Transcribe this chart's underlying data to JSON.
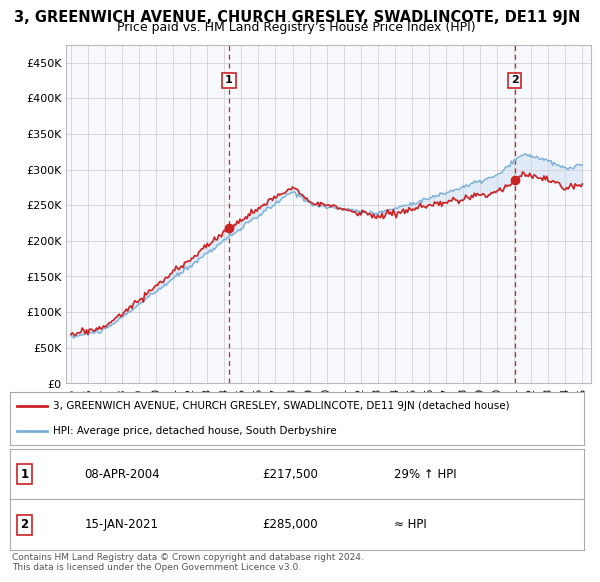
{
  "title": "3, GREENWICH AVENUE, CHURCH GRESLEY, SWADLINCOTE, DE11 9JN",
  "subtitle": "Price paid vs. HM Land Registry’s House Price Index (HPI)",
  "title_fontsize": 10.5,
  "subtitle_fontsize": 9,
  "hpi_color": "#7ab0d8",
  "hpi_fill_color": "#cce0f0",
  "price_color": "#cc2222",
  "dashed_line_color": "#cc2222",
  "ylim": [
    0,
    475000
  ],
  "yticks": [
    0,
    50000,
    100000,
    150000,
    200000,
    250000,
    300000,
    350000,
    400000,
    450000
  ],
  "ytick_labels": [
    "£0",
    "£50K",
    "£100K",
    "£150K",
    "£200K",
    "£250K",
    "£300K",
    "£350K",
    "£400K",
    "£450K"
  ],
  "xlim_start": 1994.7,
  "xlim_end": 2025.5,
  "xticks": [
    1995,
    1996,
    1997,
    1998,
    1999,
    2000,
    2001,
    2002,
    2003,
    2004,
    2005,
    2006,
    2007,
    2008,
    2009,
    2010,
    2011,
    2012,
    2013,
    2014,
    2015,
    2016,
    2017,
    2018,
    2019,
    2020,
    2021,
    2022,
    2023,
    2024,
    2025
  ],
  "point1_x": 2004.27,
  "point1_y": 217500,
  "point2_x": 2021.04,
  "point2_y": 285000,
  "legend_line1": "3, GREENWICH AVENUE, CHURCH GRESLEY, SWADLINCOTE, DE11 9JN (detached house)",
  "legend_line2": "HPI: Average price, detached house, South Derbyshire",
  "table_row1_num": "1",
  "table_row1_date": "08-APR-2004",
  "table_row1_price": "£217,500",
  "table_row1_hpi": "29% ↑ HPI",
  "table_row2_num": "2",
  "table_row2_date": "15-JAN-2021",
  "table_row2_price": "£285,000",
  "table_row2_hpi": "≈ HPI",
  "footer": "Contains HM Land Registry data © Crown copyright and database right 2024.\nThis data is licensed under the Open Government Licence v3.0.",
  "bg_color": "#ffffff",
  "grid_color": "#cccccc",
  "plot_bg": "#f8f8ff"
}
